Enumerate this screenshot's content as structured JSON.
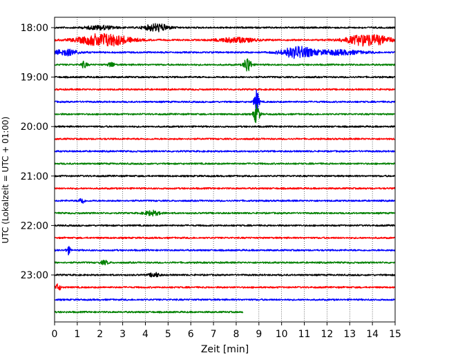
{
  "chart_data": {
    "type": "line",
    "xlabel": "Zeit  [min]",
    "ylabel": "UTC (Lokalzeit = UTC + 01:00)",
    "xlim": [
      0,
      15
    ],
    "x_ticks": [
      "0",
      "1",
      "2",
      "3",
      "4",
      "5",
      "6",
      "7",
      "8",
      "9",
      "10",
      "11",
      "12",
      "13",
      "14",
      "15"
    ],
    "y_tick_labels": [
      "18:00",
      "19:00",
      "20:00",
      "21:00",
      "22:00",
      "23:00"
    ],
    "grid": "vertical dotted lines at each minute",
    "colors_cycle": [
      "#000000",
      "#ff0000",
      "#0000ff",
      "#008000"
    ],
    "traces": [
      {
        "start": "18:00",
        "color": "black",
        "end_min": 15
      },
      {
        "start": "18:15",
        "color": "red",
        "end_min": 15
      },
      {
        "start": "18:30",
        "color": "blue",
        "end_min": 15
      },
      {
        "start": "18:45",
        "color": "green",
        "end_min": 15
      },
      {
        "start": "19:00",
        "color": "black",
        "end_min": 15
      },
      {
        "start": "19:15",
        "color": "red",
        "end_min": 15
      },
      {
        "start": "19:30",
        "color": "blue",
        "end_min": 15
      },
      {
        "start": "19:45",
        "color": "green",
        "end_min": 15
      },
      {
        "start": "20:00",
        "color": "black",
        "end_min": 15
      },
      {
        "start": "20:15",
        "color": "red",
        "end_min": 15
      },
      {
        "start": "20:30",
        "color": "blue",
        "end_min": 15
      },
      {
        "start": "20:45",
        "color": "green",
        "end_min": 15
      },
      {
        "start": "21:00",
        "color": "black",
        "end_min": 15
      },
      {
        "start": "21:15",
        "color": "red",
        "end_min": 15
      },
      {
        "start": "21:30",
        "color": "blue",
        "end_min": 15
      },
      {
        "start": "21:45",
        "color": "green",
        "end_min": 15
      },
      {
        "start": "22:00",
        "color": "black",
        "end_min": 15
      },
      {
        "start": "22:15",
        "color": "red",
        "end_min": 15
      },
      {
        "start": "22:30",
        "color": "blue",
        "end_min": 15
      },
      {
        "start": "22:45",
        "color": "green",
        "end_min": 15
      },
      {
        "start": "23:00",
        "color": "black",
        "end_min": 15
      },
      {
        "start": "23:15",
        "color": "red",
        "end_min": 15
      },
      {
        "start": "23:30",
        "color": "blue",
        "end_min": 15
      },
      {
        "start": "23:45",
        "color": "green",
        "end_min": 8.3
      }
    ],
    "events": [
      {
        "trace": 0,
        "center_min": 4.5,
        "width_min": 1.2,
        "amp": 1.0
      },
      {
        "trace": 0,
        "center_min": 2.0,
        "width_min": 1.5,
        "amp": 0.5
      },
      {
        "trace": 1,
        "center_min": 2.2,
        "width_min": 2.5,
        "amp": 1.7
      },
      {
        "trace": 1,
        "center_min": 13.8,
        "width_min": 2.2,
        "amp": 1.5
      },
      {
        "trace": 1,
        "center_min": 8.0,
        "width_min": 2.0,
        "amp": 0.6
      },
      {
        "trace": 2,
        "center_min": 10.7,
        "width_min": 1.6,
        "amp": 1.5
      },
      {
        "trace": 2,
        "center_min": 0.5,
        "width_min": 1.2,
        "amp": 0.8
      },
      {
        "trace": 2,
        "center_min": 12.5,
        "width_min": 2.5,
        "amp": 0.6
      },
      {
        "trace": 3,
        "center_min": 8.5,
        "width_min": 0.35,
        "amp": 2.2
      },
      {
        "trace": 3,
        "center_min": 1.3,
        "width_min": 0.3,
        "amp": 0.8
      },
      {
        "trace": 3,
        "center_min": 2.5,
        "width_min": 0.3,
        "amp": 0.7
      },
      {
        "trace": 6,
        "center_min": 8.9,
        "width_min": 0.25,
        "amp": 3.0
      },
      {
        "trace": 7,
        "center_min": 8.9,
        "width_min": 0.3,
        "amp": 2.5
      },
      {
        "trace": 14,
        "center_min": 1.2,
        "width_min": 0.25,
        "amp": 0.9
      },
      {
        "trace": 15,
        "center_min": 4.3,
        "width_min": 0.8,
        "amp": 0.6
      },
      {
        "trace": 18,
        "center_min": 0.6,
        "width_min": 0.2,
        "amp": 1.1
      },
      {
        "trace": 21,
        "center_min": 0.15,
        "width_min": 0.3,
        "amp": 0.8
      },
      {
        "trace": 19,
        "center_min": 2.2,
        "width_min": 0.4,
        "amp": 0.5
      },
      {
        "trace": 20,
        "center_min": 4.4,
        "width_min": 0.5,
        "amp": 0.6
      }
    ]
  }
}
